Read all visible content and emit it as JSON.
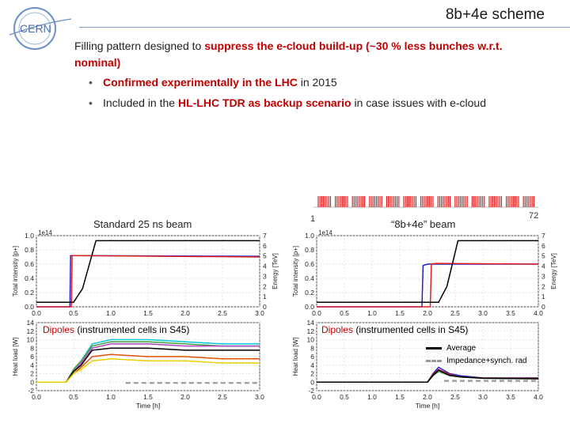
{
  "slide_title": "8b+4e scheme",
  "logo_text": "CERN",
  "intro": {
    "prefix": "Filling pattern designed to ",
    "highlight": "suppress the e-cloud build-up (~30 % less bunches w.r.t.",
    "line2": "nominal)"
  },
  "bullets": [
    {
      "highlight": "Confirmed experimentally in the LHC",
      "rest": " in 2015"
    },
    {
      "prefix": "Included in the ",
      "highlight": "HL-LHC TDR as backup scenario",
      "rest": " in case issues with e-cloud"
    }
  ],
  "pattern_strip": {
    "start_label": "1",
    "end_label": "72",
    "color": "#e02020"
  },
  "left_panel": {
    "caption": "Standard 25 ns beam",
    "dipole_label_red": "Dipoles",
    "dipole_label_rest": " (instrumented cells in S45)"
  },
  "right_panel": {
    "caption": "“8b+4e” beam",
    "dipole_label_red": "Dipoles",
    "dipole_label_rest": " (instrumented cells in S45)",
    "legend": [
      "Average",
      "Impedance+synch. rad"
    ]
  },
  "chart_data": [
    {
      "type": "line",
      "title": "",
      "xlabel": "",
      "ylabel": "Total intensity [p+]",
      "y2label": "Energy [TeV]",
      "exponent_label": "1e14",
      "xlim": [
        0.0,
        3.0
      ],
      "ylim": [
        0.0,
        1.0
      ],
      "y2lim": [
        0,
        7
      ],
      "xticks": [
        "0.0",
        "0.5",
        "1.0",
        "1.5",
        "2.0",
        "2.5",
        "3.0"
      ],
      "yticks": [
        "0.0",
        "0.2",
        "0.4",
        "0.6",
        "0.8",
        "1.0"
      ],
      "y2ticks": [
        "0",
        "1",
        "2",
        "3",
        "4",
        "5",
        "6",
        "7"
      ],
      "grid": true,
      "series": [
        {
          "color": "#1f1fd0",
          "x": [
            0,
            0.45,
            0.46,
            0.5,
            3.0
          ],
          "y": [
            0,
            0,
            0.72,
            0.72,
            0.71
          ]
        },
        {
          "color": "#e02020",
          "x": [
            0,
            0.47,
            0.48,
            0.5,
            3.0
          ],
          "y": [
            0,
            0,
            0.72,
            0.72,
            0.7
          ]
        },
        {
          "color": "#000000",
          "axis": "y2",
          "x": [
            0,
            0.5,
            0.62,
            0.8,
            3.0
          ],
          "y": [
            0.45,
            0.45,
            1.8,
            6.5,
            6.5
          ]
        }
      ]
    },
    {
      "type": "line",
      "title": "",
      "xlabel": "Time [h]",
      "ylabel": "Heat load [W]",
      "xlim": [
        0.0,
        3.0
      ],
      "ylim": [
        -2,
        14
      ],
      "xticks": [
        "0.0",
        "0.5",
        "1.0",
        "1.5",
        "2.0",
        "2.5",
        "3.0"
      ],
      "yticks": [
        "-2",
        "0",
        "2",
        "4",
        "6",
        "8",
        "10",
        "12",
        "14"
      ],
      "grid": true,
      "series": [
        {
          "color": "#00c8d8",
          "x": [
            0,
            0.4,
            0.5,
            0.6,
            0.75,
            1.0,
            1.5,
            2.0,
            2.5,
            3.0
          ],
          "y": [
            0,
            0,
            3,
            5,
            9,
            10,
            10,
            9.5,
            9,
            9
          ]
        },
        {
          "color": "#40a040",
          "x": [
            0,
            0.4,
            0.5,
            0.6,
            0.75,
            1.0,
            1.5,
            2.0,
            2.5,
            3.0
          ],
          "y": [
            0,
            0,
            3,
            5,
            8.5,
            9.5,
            9.5,
            9,
            8.5,
            8.5
          ]
        },
        {
          "color": "#b040c0",
          "x": [
            0,
            0.4,
            0.5,
            0.6,
            0.75,
            1.0,
            1.5,
            2.0,
            2.5,
            3.0
          ],
          "y": [
            0,
            0,
            2.5,
            4.5,
            8,
            9,
            9,
            8.5,
            8.5,
            8.5
          ]
        },
        {
          "color": "#000000",
          "x": [
            0,
            0.4,
            0.5,
            0.6,
            0.75,
            1.0,
            1.5,
            2.0,
            2.5,
            3.0
          ],
          "y": [
            0,
            0,
            2.5,
            4,
            7.5,
            8,
            8,
            7.5,
            7.5,
            7.5
          ]
        },
        {
          "color": "#e05000",
          "x": [
            0,
            0.4,
            0.5,
            0.6,
            0.75,
            1.0,
            1.5,
            2.0,
            2.5,
            3.0
          ],
          "y": [
            0,
            0,
            2,
            3.5,
            6,
            6.5,
            6,
            6,
            5.5,
            5.5
          ]
        },
        {
          "color": "#e8d000",
          "x": [
            0,
            0.4,
            0.5,
            0.6,
            0.75,
            1.0,
            1.5,
            2.0,
            2.5,
            3.0
          ],
          "y": [
            0,
            0,
            2,
            3,
            5,
            5.5,
            5,
            5,
            4.5,
            4.5
          ]
        },
        {
          "color": "#999999",
          "dashed": true,
          "x": [
            1.2,
            3.0
          ],
          "y": [
            -0.2,
            -0.2
          ]
        }
      ]
    },
    {
      "type": "line",
      "title": "",
      "xlabel": "",
      "ylabel": "Total intensity [p+]",
      "y2label": "Energy [TeV]",
      "exponent_label": "1e14",
      "xlim": [
        0.0,
        4.0
      ],
      "ylim": [
        0.0,
        1.0
      ],
      "y2lim": [
        0,
        7
      ],
      "xticks": [
        "0.0",
        "0.5",
        "1.0",
        "1.5",
        "2.0",
        "2.5",
        "3.0",
        "3.5",
        "4.0"
      ],
      "yticks": [
        "0.0",
        "0.2",
        "0.4",
        "0.6",
        "0.8",
        "1.0"
      ],
      "y2ticks": [
        "0",
        "1",
        "2",
        "3",
        "4",
        "5",
        "6",
        "7"
      ],
      "grid": true,
      "series": [
        {
          "color": "#1f1fd0",
          "x": [
            0,
            1.9,
            1.92,
            2.0,
            4.0
          ],
          "y": [
            0,
            0,
            0.58,
            0.6,
            0.6
          ]
        },
        {
          "color": "#e02020",
          "x": [
            0,
            2.05,
            2.07,
            2.15,
            4.0
          ],
          "y": [
            0,
            0,
            0.6,
            0.61,
            0.6
          ]
        },
        {
          "color": "#000000",
          "axis": "y2",
          "x": [
            0,
            2.2,
            2.35,
            2.55,
            4.0
          ],
          "y": [
            0.45,
            0.45,
            2,
            6.5,
            6.5
          ]
        }
      ]
    },
    {
      "type": "line",
      "title": "",
      "xlabel": "Time [h]",
      "ylabel": "Heat load [W]",
      "xlim": [
        0.0,
        4.0
      ],
      "ylim": [
        -2,
        14
      ],
      "xticks": [
        "0.0",
        "0.5",
        "1.0",
        "1.5",
        "2.0",
        "2.5",
        "3.0",
        "3.5",
        "4.0"
      ],
      "yticks": [
        "-2",
        "0",
        "2",
        "4",
        "6",
        "8",
        "10",
        "12",
        "14"
      ],
      "grid": true,
      "series": [
        {
          "color": "#1f1fd0",
          "x": [
            0,
            2.0,
            2.1,
            2.2,
            2.4,
            2.6,
            3.0,
            4.0
          ],
          "y": [
            0,
            0,
            2,
            3.5,
            2,
            1.5,
            1,
            1
          ]
        },
        {
          "color": "#e02020",
          "x": [
            0,
            2.0,
            2.1,
            2.2,
            2.4,
            2.6,
            3.0,
            4.0
          ],
          "y": [
            0,
            0,
            1.8,
            3,
            1.8,
            1.2,
            1,
            0.9
          ]
        },
        {
          "color": "#40a040",
          "x": [
            0,
            2.0,
            2.1,
            2.2,
            2.4,
            2.6,
            3.0,
            4.0
          ],
          "y": [
            0,
            0,
            1.5,
            2.5,
            1.5,
            1.2,
            0.9,
            0.8
          ]
        },
        {
          "color": "#000000",
          "x": [
            0,
            2.0,
            2.1,
            2.2,
            2.4,
            2.6,
            3.0,
            4.0
          ],
          "y": [
            0,
            0,
            1.6,
            2.8,
            1.6,
            1.2,
            0.9,
            0.8
          ]
        },
        {
          "color": "#999999",
          "dashed": true,
          "x": [
            2.3,
            4.0
          ],
          "y": [
            0.3,
            0.3
          ]
        }
      ]
    }
  ]
}
